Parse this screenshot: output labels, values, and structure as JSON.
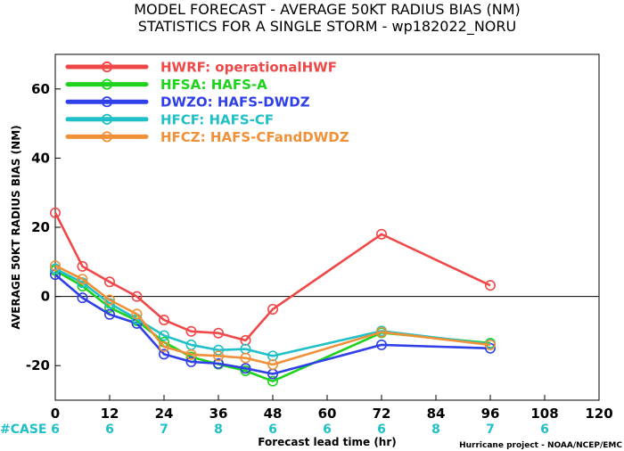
{
  "chart_data": {
    "type": "line",
    "title": "MODEL FORECAST - AVERAGE 50KT RADIUS BIAS (NM)",
    "subtitle": "STATISTICS FOR A SINGLE STORM - wp182022_NORU",
    "xlabel": "Forecast lead time (hr)",
    "ylabel": "AVERAGE 50KT RADIUS BIAS (NM)",
    "xlim": [
      0,
      120
    ],
    "ylim": [
      -30,
      70
    ],
    "xticks": [
      0,
      12,
      24,
      36,
      48,
      60,
      72,
      84,
      96,
      108,
      120
    ],
    "yticks": [
      -20,
      0,
      20,
      40,
      60
    ],
    "grid": false,
    "zero_line": true,
    "legend_position": "top-left",
    "case_label": "#CASE",
    "cases": [
      {
        "x": 0,
        "n": "6"
      },
      {
        "x": 12,
        "n": "6"
      },
      {
        "x": 24,
        "n": "7"
      },
      {
        "x": 36,
        "n": "8"
      },
      {
        "x": 48,
        "n": "6"
      },
      {
        "x": 60,
        "n": "6"
      },
      {
        "x": 72,
        "n": "6"
      },
      {
        "x": 84,
        "n": "8"
      },
      {
        "x": 96,
        "n": "7"
      },
      {
        "x": 108,
        "n": "6"
      }
    ],
    "credit": "Hurricane project - NOAA/NCEP/EMC",
    "series": [
      {
        "name": "HWRF: operationalHWF",
        "color": "#f04848",
        "x": [
          0,
          6,
          12,
          18,
          24,
          30,
          36,
          42,
          48,
          72,
          96
        ],
        "y": [
          24.2,
          8.7,
          4.2,
          0.0,
          -6.8,
          -10.1,
          -10.6,
          -12.7,
          -3.7,
          18.0,
          3.2
        ]
      },
      {
        "name": "HFSA: HAFS-A",
        "color": "#1ed21e",
        "x": [
          0,
          6,
          12,
          18,
          24,
          30,
          36,
          42,
          48,
          72,
          96
        ],
        "y": [
          7.5,
          3.0,
          -3.2,
          -7.0,
          -13.2,
          -17.5,
          -19.6,
          -21.5,
          -24.5,
          -10.5,
          -13.5
        ]
      },
      {
        "name": "DWZO: HAFS-DWDZ",
        "color": "#3040e8",
        "x": [
          0,
          6,
          12,
          18,
          24,
          30,
          36,
          42,
          48,
          72,
          96
        ],
        "y": [
          6.3,
          -0.4,
          -5.2,
          -7.8,
          -16.7,
          -18.9,
          -19.4,
          -20.8,
          -22.4,
          -14.0,
          -15.0
        ]
      },
      {
        "name": "HFCF: HAFS-CF",
        "color": "#20c0c8",
        "x": [
          0,
          6,
          12,
          18,
          24,
          30,
          36,
          42,
          48,
          72,
          96
        ],
        "y": [
          8.0,
          4.0,
          -2.0,
          -6.5,
          -11.3,
          -14.0,
          -15.5,
          -15.2,
          -17.2,
          -10.0,
          -13.8
        ]
      },
      {
        "name": "HFCZ: HAFS-CFandDWDZ",
        "color": "#f09038",
        "x": [
          0,
          6,
          12,
          18,
          24,
          30,
          36,
          42,
          48,
          72,
          96
        ],
        "y": [
          8.9,
          5.0,
          -1.0,
          -5.1,
          -14.5,
          -16.8,
          -17.2,
          -17.8,
          -19.7,
          -10.3,
          -14.0
        ]
      }
    ]
  }
}
